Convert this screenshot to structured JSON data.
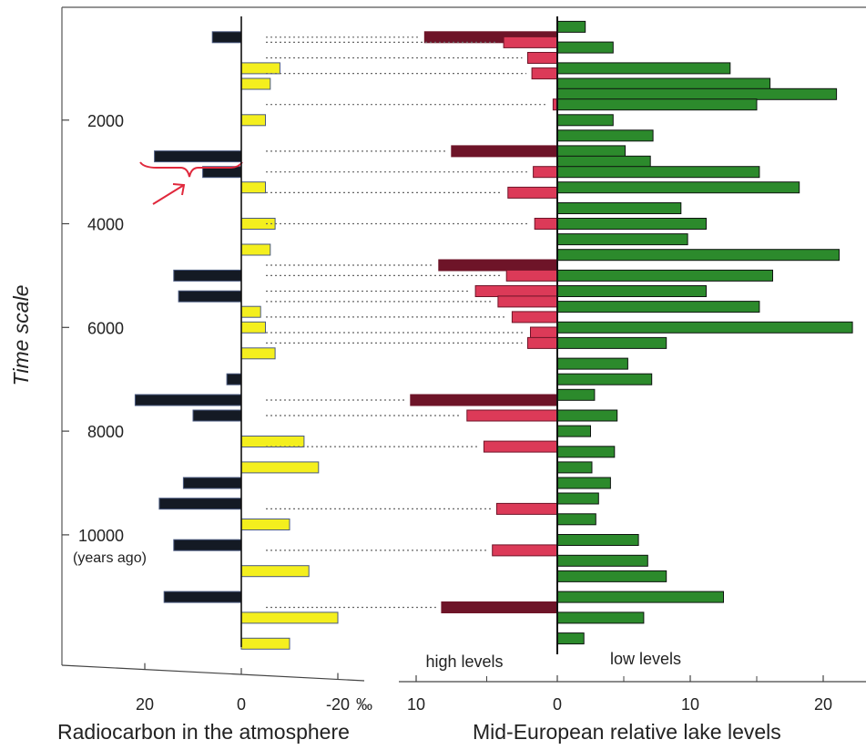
{
  "colors": {
    "radio_positive": "#141a24",
    "radio_negative": "#f4ef1e",
    "radio_edge": "#4a5a80",
    "high_dark": "#6e1428",
    "high_light": "#dc3a58",
    "low_dark": "#0e1410",
    "low_green": "#2c8a2c",
    "annotation": "#e0283c",
    "connector": "#666666"
  },
  "chart_data": {
    "type": "bar",
    "layout": "three horizontal-bar panels sharing a vertical time axis",
    "y_axis": {
      "label": "Time scale",
      "unit_label": "(years ago)",
      "ticks": [
        2000,
        4000,
        6000,
        8000,
        10000
      ],
      "tick_labels": [
        "2000",
        "4000",
        "6000",
        "8000",
        "10000"
      ],
      "range": [
        0,
        12200
      ],
      "direction": "down"
    },
    "panels": [
      {
        "id": "radiocarbon",
        "xlabel": "Radiocarbon in the atmosphere",
        "x_ticks": [
          "20",
          "0",
          "-20"
        ],
        "x_tick_values": [
          20,
          0,
          -20
        ],
        "x_unit": "‰",
        "xlim": [
          26,
          -25
        ],
        "grid": false,
        "series": [
          {
            "years": [
              400,
              1000,
              1300,
              2000,
              2700,
              3000,
              3300,
              4000,
              4500,
              5000,
              5400,
              5700,
              6000,
              6500,
              7000,
              7400,
              7700,
              8200,
              8700,
              9000,
              9400,
              9800,
              10200,
              10700,
              11200,
              11600,
              12100
            ],
            "values": [
              6,
              -8,
              -6,
              -5,
              18,
              8,
              -5,
              -7,
              -6,
              14,
              13,
              -4,
              -5,
              -7,
              3,
              22,
              10,
              -13,
              -16,
              12,
              17,
              -10,
              14,
              -14,
              16,
              -20,
              -10
            ]
          }
        ]
      },
      {
        "id": "lake_high",
        "xlabel": "",
        "header": "high levels",
        "x_ticks": [
          "10",
          "0"
        ],
        "x_tick_values": [
          10,
          0
        ],
        "xlim": [
          11,
          0
        ],
        "series": [
          {
            "years": [
              400,
              500,
              800,
              1100,
              1700,
              2600,
              3000,
              3400,
              4000,
              4800,
              5000,
              5300,
              5500,
              5800,
              6100,
              6300,
              7400,
              7700,
              8300,
              9500,
              10300,
              11400
            ],
            "values": [
              9.4,
              3.8,
              2.1,
              1.8,
              0.3,
              7.5,
              1.7,
              3.5,
              1.6,
              8.4,
              3.6,
              5.8,
              4.2,
              3.2,
              1.9,
              2.1,
              10.4,
              6.4,
              5.2,
              4.3,
              4.6,
              8.2
            ]
          }
        ]
      },
      {
        "id": "lake_low",
        "xlabel": "Mid-European relative lake levels",
        "header": "low levels",
        "x_ticks": [
          "0",
          "10",
          "20"
        ],
        "x_tick_values": [
          0,
          10,
          20
        ],
        "xlim": [
          0,
          22.5
        ],
        "series": [
          {
            "years": [
              200,
              600,
              1000,
              1300,
              1500,
              1700,
              2000,
              2300,
              2600,
              2800,
              3000,
              3300,
              3700,
              4000,
              4300,
              4600,
              5000,
              5300,
              5600,
              6000,
              6300,
              6700,
              7000,
              7300,
              7700,
              8000,
              8400,
              8700,
              9000,
              9300,
              9700,
              10100,
              10500,
              10800,
              11200,
              11600,
              12000
            ],
            "values": [
              2.1,
              4.2,
              13,
              16,
              21,
              15,
              4.2,
              7.2,
              5.1,
              7,
              15.2,
              18.2,
              9.3,
              11.2,
              9.8,
              21.2,
              16.2,
              11.2,
              15.2,
              22.2,
              8.2,
              5.3,
              7.1,
              2.8,
              4.5,
              2.5,
              4.3,
              2.6,
              4,
              3.1,
              2.9,
              6.1,
              6.8,
              8.2,
              12.5,
              6.5,
              2
            ]
          }
        ]
      }
    ]
  }
}
